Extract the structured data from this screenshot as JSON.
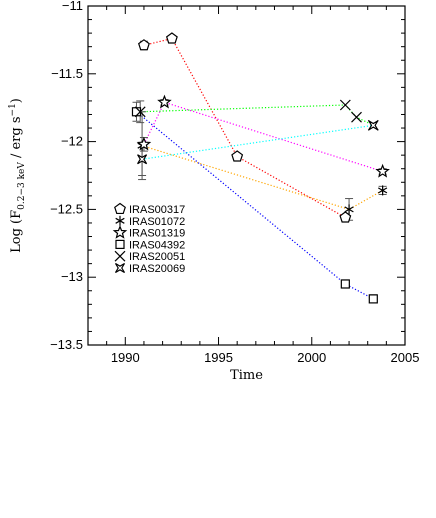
{
  "chart_data": {
    "type": "scatter",
    "xlabel": "Time",
    "ylabel_main": "Log (F",
    "ylabel_sub": "0.2−3 keV",
    "ylabel_rest": " /  erg  s",
    "ylabel_sup": "−1",
    "ylabel_close": ")",
    "xlim": [
      1988,
      2005
    ],
    "ylim": [
      -13.5,
      -11
    ],
    "xticks": [
      1990,
      1995,
      2000,
      2005
    ],
    "xtick_labels": [
      "1990",
      "1995",
      "2000",
      "2005"
    ],
    "yticks": [
      -11,
      -11.5,
      -12,
      -12.5,
      -13,
      -13.5
    ],
    "ytick_labels": [
      "−11",
      "−11.5",
      "−12",
      "−12.5",
      "−13",
      "−13.5"
    ],
    "legend_position": "left-middle",
    "series": [
      {
        "name": "IRAS00317",
        "marker": "pentagon",
        "color": "#ff0000",
        "points": [
          {
            "x": 1991.0,
            "y": -11.29,
            "err": 0.03
          },
          {
            "x": 1992.5,
            "y": -11.24,
            "err": 0.0
          },
          {
            "x": 1996.0,
            "y": -12.11,
            "err": 0.0
          },
          {
            "x": 2001.8,
            "y": -12.56,
            "err": 0.02
          }
        ]
      },
      {
        "name": "IRAS01072",
        "marker": "asterisk",
        "color": "#ffa500",
        "points": [
          {
            "x": 1990.9,
            "y": -12.03,
            "err": 0.25
          },
          {
            "x": 2002.0,
            "y": -12.5,
            "err": 0.08
          },
          {
            "x": 2003.8,
            "y": -12.36,
            "err": 0.03
          }
        ]
      },
      {
        "name": "IRAS01319",
        "marker": "star",
        "color": "#ff00ff",
        "points": [
          {
            "x": 1991.0,
            "y": -12.02,
            "err": 0.05
          },
          {
            "x": 1992.1,
            "y": -11.71,
            "err": 0.02
          },
          {
            "x": 2003.8,
            "y": -12.22,
            "err": 0.02
          }
        ]
      },
      {
        "name": "IRAS04392",
        "marker": "square",
        "color": "#0000ff",
        "points": [
          {
            "x": 1990.6,
            "y": -11.78,
            "err": 0.07
          },
          {
            "x": 2001.8,
            "y": -13.05,
            "err": 0.03
          },
          {
            "x": 2003.3,
            "y": -13.16,
            "err": 0.03
          }
        ]
      },
      {
        "name": "IRAS20051",
        "marker": "cross",
        "color": "#00ff00",
        "points": [
          {
            "x": 1990.8,
            "y": -11.78,
            "err": 0.08
          },
          {
            "x": 2001.8,
            "y": -11.73,
            "err": 0.0
          },
          {
            "x": 2002.4,
            "y": -11.82,
            "err": 0.0
          },
          {
            "x": 2003.3,
            "y": -11.88,
            "err": 0.0
          }
        ]
      },
      {
        "name": "IRAS20069",
        "marker": "starsquare",
        "color": "#00ffff",
        "points": [
          {
            "x": 1990.9,
            "y": -12.13,
            "err": 0.12
          },
          {
            "x": 2003.3,
            "y": -11.88,
            "err": 0.0
          }
        ]
      }
    ]
  }
}
